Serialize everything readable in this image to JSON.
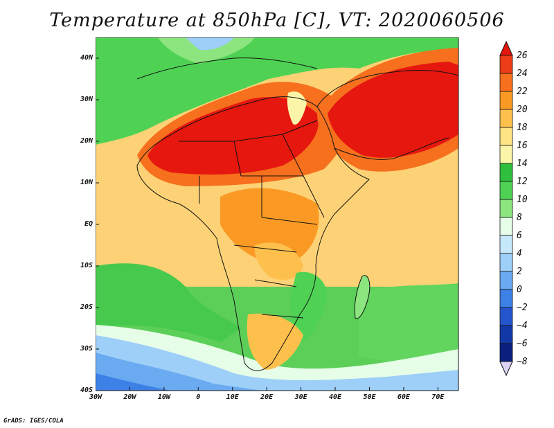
{
  "title": "Temperature at 850hPa [C], VT: 2020060506",
  "credit": "GrADS: IGES/COLA",
  "map": {
    "lon_range": [
      -30,
      76
    ],
    "lat_range": [
      -40,
      45
    ],
    "lat_ticks": [
      {
        "value": 40,
        "label": "40N"
      },
      {
        "value": 30,
        "label": "30N"
      },
      {
        "value": 20,
        "label": "20N"
      },
      {
        "value": 10,
        "label": "10N"
      },
      {
        "value": 0,
        "label": "EQ"
      },
      {
        "value": -10,
        "label": "10S"
      },
      {
        "value": -20,
        "label": "20S"
      },
      {
        "value": -30,
        "label": "30S"
      },
      {
        "value": -40,
        "label": "40S"
      }
    ],
    "lon_ticks": [
      {
        "value": -30,
        "label": "30W"
      },
      {
        "value": -20,
        "label": "20W"
      },
      {
        "value": -10,
        "label": "10W"
      },
      {
        "value": 0,
        "label": "0"
      },
      {
        "value": 10,
        "label": "10E"
      },
      {
        "value": 20,
        "label": "20E"
      },
      {
        "value": 30,
        "label": "30E"
      },
      {
        "value": 40,
        "label": "40E"
      },
      {
        "value": 50,
        "label": "50E"
      },
      {
        "value": 60,
        "label": "60E"
      },
      {
        "value": 70,
        "label": "70E"
      }
    ]
  },
  "colorbar": {
    "levels": [
      26,
      24,
      22,
      20,
      18,
      16,
      14,
      12,
      10,
      8,
      6,
      4,
      2,
      0,
      -2,
      -4,
      -6,
      -8
    ],
    "labels": [
      "26",
      "24",
      "22",
      "20",
      "18",
      "16",
      "14",
      "12",
      "10",
      "8",
      "6",
      "4",
      "2",
      "0",
      "−2",
      "−4",
      "−6",
      "−8"
    ],
    "colors": [
      "#e5170e",
      "#ed3c18",
      "#f6701e",
      "#fa9a25",
      "#fdc04c",
      "#fee484",
      "#fbf5a9",
      "#2fbf3c",
      "#4fd254",
      "#8ce57f",
      "#e6fde8",
      "#c6e8fb",
      "#9dcff8",
      "#6aaaf1",
      "#3d80e6",
      "#2355cd",
      "#1238a8",
      "#0a1f7f",
      "#dcd4f5"
    ]
  }
}
